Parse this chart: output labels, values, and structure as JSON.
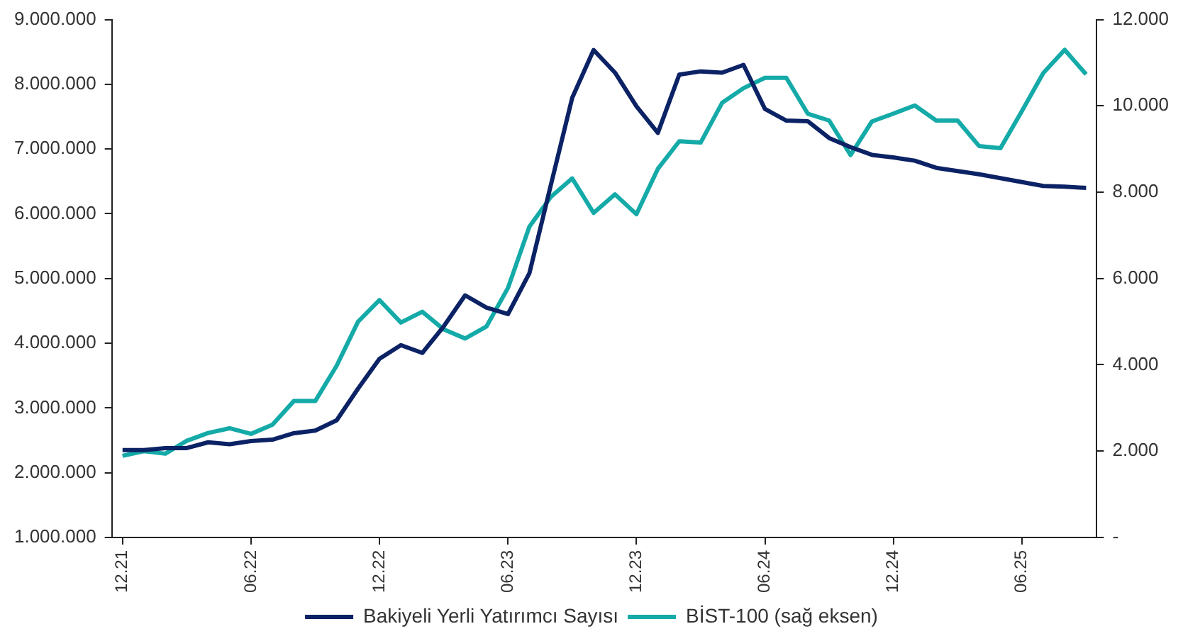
{
  "chart_data": {
    "type": "line",
    "categories": [
      "12.21",
      null,
      null,
      null,
      null,
      null,
      "06.22",
      null,
      null,
      null,
      null,
      null,
      "12.22",
      null,
      null,
      null,
      null,
      null,
      "06.23",
      null,
      null,
      null,
      null,
      null,
      "12.23",
      null,
      null,
      null,
      null,
      null,
      "06.24",
      null,
      null,
      null,
      null,
      null,
      "12.24",
      null,
      null,
      null,
      null,
      null,
      "06.25",
      null,
      null,
      null
    ],
    "series": [
      {
        "name": "Bakiyeli Yerli Yatırımcı Sayısı",
        "color": "#0b2265",
        "values": [
          2350000,
          2350000,
          2380000,
          2380000,
          2470000,
          2440000,
          2490000,
          2510000,
          2610000,
          2650000,
          2810000,
          3300000,
          3760000,
          3970000,
          3850000,
          4260000,
          4740000,
          4550000,
          4450000,
          5080000,
          6440000,
          7790000,
          8530000,
          8180000,
          7660000,
          7250000,
          8150000,
          8200000,
          8180000,
          8300000,
          7620000,
          7440000,
          7430000,
          7170000,
          7030000,
          6910000,
          6870000,
          6820000,
          6710000,
          6660000,
          6610000,
          6550000,
          6490000,
          6430000,
          6420000,
          6400000
        ]
      },
      {
        "name": "BİST-100 (sağ eksen)",
        "color": "#14aaa8",
        "axis": "y2",
        "values": [
          1890,
          2000,
          1940,
          2240,
          2420,
          2530,
          2400,
          2610,
          3160,
          3160,
          3980,
          5000,
          5500,
          4980,
          5230,
          4820,
          4610,
          4890,
          5780,
          7200,
          7890,
          8320,
          7520,
          7950,
          7490,
          8540,
          9180,
          9150,
          10070,
          10410,
          10650,
          10650,
          9820,
          9660,
          8860,
          9640,
          9820,
          10010,
          9660,
          9660,
          9070,
          9020,
          9880,
          10760,
          11300,
          10730
        ]
      }
    ],
    "ylim": [
      1000000,
      9000000
    ],
    "yticks": [
      {
        "value": 1000000,
        "label": "1.000.000"
      },
      {
        "value": 2000000,
        "label": "2.000.000"
      },
      {
        "value": 3000000,
        "label": "3.000.000"
      },
      {
        "value": 4000000,
        "label": "4.000.000"
      },
      {
        "value": 5000000,
        "label": "5.000.000"
      },
      {
        "value": 6000000,
        "label": "6.000.000"
      },
      {
        "value": 7000000,
        "label": "7.000.000"
      },
      {
        "value": 8000000,
        "label": "8.000.000"
      },
      {
        "value": 9000000,
        "label": "9.000.000"
      }
    ],
    "y2lim": [
      0,
      12000
    ],
    "y2ticks": [
      {
        "value": 0,
        "label": "-"
      },
      {
        "value": 2000,
        "label": "2.000"
      },
      {
        "value": 4000,
        "label": "4.000"
      },
      {
        "value": 6000,
        "label": "6.000"
      },
      {
        "value": 8000,
        "label": "8.000"
      },
      {
        "value": 10000,
        "label": "10.000"
      },
      {
        "value": 12000,
        "label": "12.000"
      }
    ],
    "grid": false,
    "legend": "bottom",
    "marker": "none",
    "line_style": "solid"
  }
}
